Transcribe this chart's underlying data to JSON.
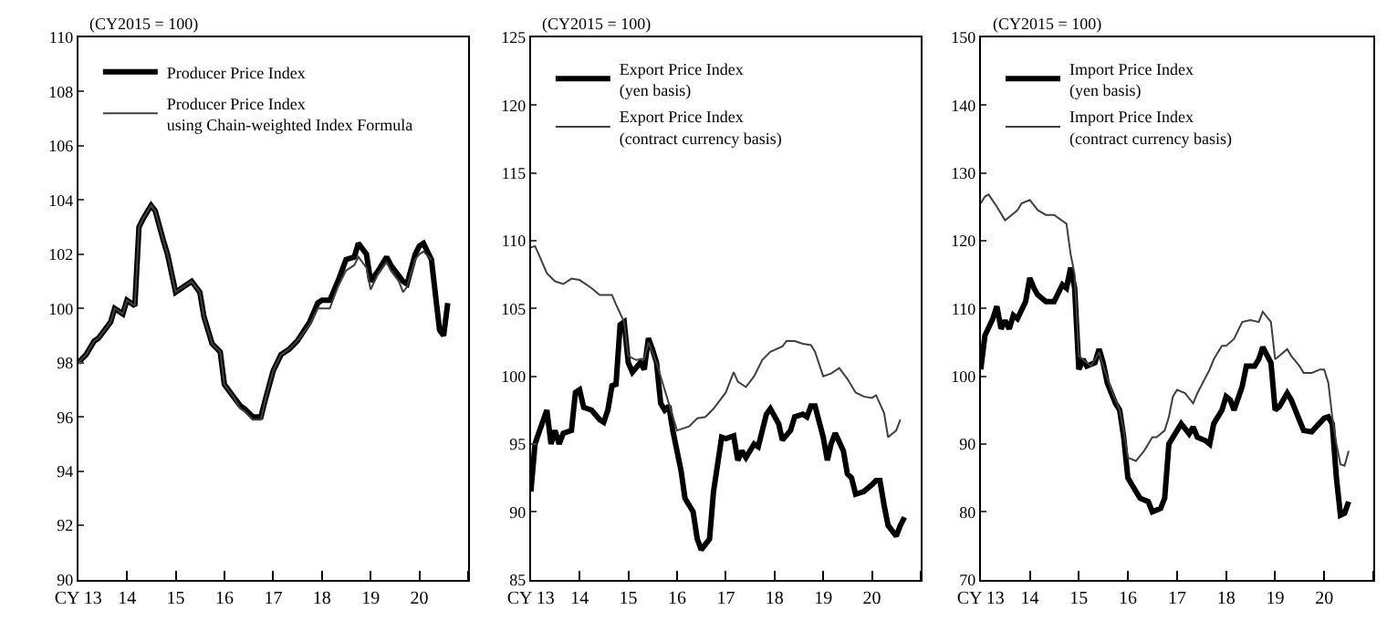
{
  "chart_data": [
    {
      "type": "line",
      "ylabel": "(CY2015 = 100)",
      "xlim": [
        "2013-01",
        "2021-01"
      ],
      "ylim": [
        90,
        110
      ],
      "yticks": [
        90,
        92,
        94,
        96,
        98,
        100,
        102,
        104,
        106,
        108,
        110
      ],
      "xticks": [
        {
          "value": "2013",
          "label": "CY 13"
        },
        {
          "value": "2014",
          "label": "14"
        },
        {
          "value": "2015",
          "label": "15"
        },
        {
          "value": "2016",
          "label": "16"
        },
        {
          "value": "2017",
          "label": "17"
        },
        {
          "value": "2018",
          "label": "18"
        },
        {
          "value": "2019",
          "label": "19"
        },
        {
          "value": "2020",
          "label": "20"
        },
        {
          "value": "2021",
          "label": null
        }
      ],
      "legend": "top left",
      "marker": "none",
      "line_style": "solid",
      "series": [
        {
          "name": "Producer Price Index",
          "color": "#000000",
          "x": [
            "2013-01",
            "2013-03",
            "2013-05",
            "2013-06",
            "2013-09",
            "2013-10",
            "2013-12",
            "2014-01",
            "2014-03",
            "2014-04",
            "2014-05",
            "2014-07",
            "2014-08",
            "2014-10",
            "2014-11",
            "2015-01",
            "2015-03",
            "2015-05",
            "2015-07",
            "2015-08",
            "2015-10",
            "2015-12",
            "2016-01",
            "2016-03",
            "2016-05",
            "2016-06",
            "2016-08",
            "2016-10",
            "2016-11",
            "2017-01",
            "2017-03",
            "2017-05",
            "2017-07",
            "2017-10",
            "2017-12",
            "2018-01",
            "2018-03",
            "2018-05",
            "2018-07",
            "2018-09",
            "2018-10",
            "2018-12",
            "2019-01",
            "2019-03",
            "2019-05",
            "2019-06",
            "2019-08",
            "2019-09",
            "2019-10",
            "2019-12",
            "2020-01",
            "2020-02",
            "2020-04",
            "2020-05",
            "2020-06",
            "2020-07",
            "2020-08"
          ],
          "values": [
            98.0,
            98.3,
            98.8,
            98.9,
            99.5,
            100.0,
            99.8,
            100.3,
            100.1,
            103.0,
            103.3,
            103.8,
            103.6,
            102.5,
            102.0,
            100.6,
            100.8,
            101.0,
            100.6,
            99.7,
            98.7,
            98.4,
            97.2,
            96.8,
            96.4,
            96.3,
            96.0,
            96.0,
            96.6,
            97.7,
            98.3,
            98.5,
            98.8,
            99.5,
            100.2,
            100.3,
            100.3,
            101.0,
            101.8,
            101.9,
            102.4,
            102.0,
            101.0,
            101.4,
            101.9,
            101.6,
            101.2,
            101.0,
            100.9,
            102.0,
            102.3,
            102.4,
            101.8,
            100.5,
            99.2,
            99.0,
            100.2
          ]
        },
        {
          "name": "Producer Price Index\nusing Chain-weighted Index Formula",
          "color": "#404040",
          "x": [
            "2013-01",
            "2013-03",
            "2013-05",
            "2013-06",
            "2013-09",
            "2013-10",
            "2013-12",
            "2014-01",
            "2014-03",
            "2014-04",
            "2014-05",
            "2014-07",
            "2014-08",
            "2014-10",
            "2014-11",
            "2015-01",
            "2015-03",
            "2015-05",
            "2015-07",
            "2015-08",
            "2015-10",
            "2015-12",
            "2016-01",
            "2016-03",
            "2016-05",
            "2016-06",
            "2016-08",
            "2016-10",
            "2016-11",
            "2017-01",
            "2017-03",
            "2017-05",
            "2017-07",
            "2017-10",
            "2017-12",
            "2018-01",
            "2018-03",
            "2018-05",
            "2018-07",
            "2018-09",
            "2018-10",
            "2018-12",
            "2019-01",
            "2019-03",
            "2019-05",
            "2019-06",
            "2019-08",
            "2019-09",
            "2019-10",
            "2019-12",
            "2020-01",
            "2020-02",
            "2020-04"
          ],
          "values": [
            98.0,
            98.3,
            98.8,
            98.9,
            99.5,
            100.0,
            99.8,
            100.3,
            100.1,
            103.0,
            103.3,
            103.8,
            103.6,
            102.5,
            102.0,
            100.6,
            100.8,
            101.0,
            100.6,
            99.7,
            98.7,
            98.4,
            97.2,
            96.8,
            96.3,
            96.2,
            95.9,
            95.9,
            96.6,
            97.7,
            98.3,
            98.5,
            98.8,
            99.4,
            100.0,
            100.0,
            100.0,
            100.8,
            101.4,
            101.6,
            101.9,
            101.5,
            100.7,
            101.3,
            101.7,
            101.4,
            101.0,
            100.6,
            100.8,
            101.8,
            102.0,
            102.1,
            101.8
          ]
        }
      ]
    },
    {
      "type": "line",
      "ylabel": "(CY2015 = 100)",
      "xlim": [
        "2013-01",
        "2021-01"
      ],
      "ylim": [
        85,
        125
      ],
      "yticks": [
        85,
        90,
        95,
        100,
        105,
        110,
        115,
        120,
        125
      ],
      "xticks": [
        {
          "value": "2013",
          "label": "CY 13"
        },
        {
          "value": "2014",
          "label": "14"
        },
        {
          "value": "2015",
          "label": "15"
        },
        {
          "value": "2016",
          "label": "16"
        },
        {
          "value": "2017",
          "label": "17"
        },
        {
          "value": "2018",
          "label": "18"
        },
        {
          "value": "2019",
          "label": "19"
        },
        {
          "value": "2020",
          "label": "20"
        },
        {
          "value": "2021",
          "label": null
        }
      ],
      "legend": "top left",
      "marker": "none",
      "line_style": "solid",
      "series": [
        {
          "name": "Export Price Index\n(yen basis)",
          "color": "#000000",
          "x": [
            "2013-01",
            "2013-02",
            "2013-03",
            "2013-05",
            "2013-06",
            "2013-07",
            "2013-08",
            "2013-09",
            "2013-11",
            "2013-12",
            "2014-01",
            "2014-02",
            "2014-04",
            "2014-06",
            "2014-07",
            "2014-08",
            "2014-09",
            "2014-10",
            "2014-11",
            "2014-12",
            "2015-01",
            "2015-02",
            "2015-04",
            "2015-05",
            "2015-06",
            "2015-07",
            "2015-08",
            "2015-09",
            "2015-10",
            "2015-11",
            "2015-12",
            "2016-02",
            "2016-03",
            "2016-05",
            "2016-06",
            "2016-07",
            "2016-09",
            "2016-10",
            "2016-12",
            "2017-01",
            "2017-03",
            "2017-04",
            "2017-05",
            "2017-06",
            "2017-08",
            "2017-09",
            "2017-11",
            "2017-12",
            "2018-02",
            "2018-03",
            "2018-05",
            "2018-06",
            "2018-08",
            "2018-09",
            "2018-10",
            "2018-11",
            "2019-01",
            "2019-02",
            "2019-03",
            "2019-04",
            "2019-06",
            "2019-07",
            "2019-08",
            "2019-09",
            "2019-11",
            "2020-01",
            "2020-02",
            "2020-03",
            "2020-04",
            "2020-05",
            "2020-07",
            "2020-08",
            "2020-09"
          ],
          "values": [
            91.5,
            95.0,
            95.8,
            97.5,
            95.0,
            96.0,
            95.0,
            95.8,
            96.0,
            98.8,
            99.0,
            97.7,
            97.5,
            96.8,
            96.6,
            97.5,
            99.3,
            99.4,
            103.8,
            104.0,
            101.0,
            100.3,
            101.0,
            100.5,
            102.8,
            102.0,
            101.0,
            98.0,
            97.5,
            97.8,
            96.0,
            93.0,
            91.0,
            90.0,
            88.0,
            87.2,
            88.0,
            91.5,
            95.5,
            95.4,
            95.6,
            93.8,
            94.5,
            94.0,
            95.0,
            94.8,
            97.2,
            97.6,
            96.5,
            95.3,
            96.0,
            97.0,
            97.2,
            97.0,
            97.8,
            97.8,
            95.5,
            93.8,
            95.0,
            95.8,
            94.5,
            92.8,
            92.5,
            91.3,
            91.5,
            92.0,
            92.3,
            92.3,
            90.5,
            89.0,
            88.2,
            89.0,
            89.6
          ]
        },
        {
          "name": "Export Price Index\n(contract currency basis)",
          "color": "#404040",
          "x": [
            "2013-01",
            "2013-02",
            "2013-03",
            "2013-05",
            "2013-07",
            "2013-09",
            "2013-11",
            "2014-01",
            "2014-04",
            "2014-06",
            "2014-09",
            "2014-10",
            "2014-12",
            "2015-01",
            "2015-03",
            "2015-05",
            "2015-06",
            "2015-08",
            "2015-10",
            "2015-11",
            "2016-01",
            "2016-04",
            "2016-06",
            "2016-08",
            "2016-10",
            "2017-01",
            "2017-03",
            "2017-04",
            "2017-06",
            "2017-08",
            "2017-10",
            "2017-12",
            "2018-03",
            "2018-04",
            "2018-06",
            "2018-08",
            "2018-10",
            "2018-11",
            "2019-01",
            "2019-03",
            "2019-05",
            "2019-07",
            "2019-09",
            "2019-11",
            "2020-01",
            "2020-02",
            "2020-04",
            "2020-05",
            "2020-07",
            "2020-08"
          ],
          "values": [
            109.5,
            109.6,
            109.0,
            107.6,
            107.0,
            106.8,
            107.2,
            107.1,
            106.5,
            106.0,
            106.0,
            105.3,
            104.0,
            101.5,
            101.2,
            101.3,
            102.5,
            101.0,
            99.0,
            98.0,
            96.0,
            96.3,
            96.9,
            97.0,
            97.6,
            98.8,
            100.3,
            99.6,
            99.2,
            100.0,
            101.2,
            101.8,
            102.2,
            102.6,
            102.6,
            102.4,
            102.3,
            101.8,
            100.0,
            100.2,
            100.6,
            99.8,
            98.8,
            98.5,
            98.4,
            98.6,
            97.3,
            95.5,
            96.0,
            96.8
          ]
        }
      ]
    },
    {
      "type": "line",
      "ylabel": "(CY2015 = 100)",
      "xlim": [
        "2013-01",
        "2021-01"
      ],
      "ylim": [
        70,
        150
      ],
      "yticks": [
        70,
        80,
        90,
        100,
        110,
        120,
        130,
        140,
        150
      ],
      "xticks": [
        {
          "value": "2013",
          "label": "CY 13"
        },
        {
          "value": "2014",
          "label": "14"
        },
        {
          "value": "2015",
          "label": "15"
        },
        {
          "value": "2016",
          "label": "16"
        },
        {
          "value": "2017",
          "label": "17"
        },
        {
          "value": "2018",
          "label": "18"
        },
        {
          "value": "2019",
          "label": "19"
        },
        {
          "value": "2020",
          "label": "20"
        },
        {
          "value": "2021",
          "label": null
        }
      ],
      "legend": "top left",
      "marker": "none",
      "line_style": "solid",
      "series": [
        {
          "name": "Import Price Index\n(yen basis)",
          "color": "#000000",
          "x": [
            "2013-01",
            "2013-02",
            "2013-04",
            "2013-05",
            "2013-06",
            "2013-07",
            "2013-08",
            "2013-09",
            "2013-10",
            "2013-12",
            "2014-01",
            "2014-02",
            "2014-03",
            "2014-05",
            "2014-07",
            "2014-09",
            "2014-10",
            "2014-11",
            "2014-12",
            "2015-01",
            "2015-02",
            "2015-03",
            "2015-05",
            "2015-06",
            "2015-07",
            "2015-08",
            "2015-10",
            "2015-11",
            "2015-12",
            "2016-01",
            "2016-03",
            "2016-04",
            "2016-06",
            "2016-07",
            "2016-09",
            "2016-10",
            "2016-11",
            "2017-01",
            "2017-02",
            "2017-04",
            "2017-05",
            "2017-06",
            "2017-08",
            "2017-09",
            "2017-10",
            "2017-12",
            "2018-01",
            "2018-02",
            "2018-03",
            "2018-05",
            "2018-06",
            "2018-08",
            "2018-09",
            "2018-10",
            "2018-12",
            "2019-01",
            "2019-02",
            "2019-04",
            "2019-05",
            "2019-07",
            "2019-08",
            "2019-10",
            "2019-11",
            "2020-01",
            "2020-02",
            "2020-03",
            "2020-04",
            "2020-05",
            "2020-06",
            "2020-07"
          ],
          "values": [
            101,
            106,
            108.5,
            110.3,
            107,
            108.2,
            107,
            109,
            108.5,
            111,
            114.5,
            113,
            112,
            111,
            111,
            113.5,
            113,
            116,
            113,
            101,
            102.5,
            101.5,
            102,
            104,
            102,
            99,
            96,
            95,
            91,
            85,
            83,
            82,
            81.5,
            80,
            80.5,
            82,
            90,
            92,
            93,
            91.5,
            92.5,
            91,
            90.5,
            90,
            93,
            95,
            97,
            96.5,
            95,
            98.5,
            101.5,
            101.5,
            102.5,
            104.3,
            102,
            95,
            95.5,
            97.5,
            96.5,
            93.5,
            92,
            91.8,
            92.5,
            93.8,
            94,
            93,
            85,
            79.5,
            79.8,
            81.5
          ]
        },
        {
          "name": "Import Price Index\n(contract currency basis)",
          "color": "#404040",
          "x": [
            "2013-01",
            "2013-02",
            "2013-03",
            "2013-05",
            "2013-07",
            "2013-08",
            "2013-10",
            "2013-11",
            "2014-01",
            "2014-03",
            "2014-05",
            "2014-07",
            "2014-10",
            "2014-11",
            "2014-12",
            "2015-01",
            "2015-03",
            "2015-04",
            "2015-06",
            "2015-07",
            "2015-09",
            "2015-11",
            "2015-12",
            "2016-01",
            "2016-03",
            "2016-05",
            "2016-07",
            "2016-08",
            "2016-10",
            "2016-11",
            "2016-12",
            "2017-01",
            "2017-03",
            "2017-05",
            "2017-06",
            "2017-09",
            "2017-10",
            "2017-12",
            "2018-01",
            "2018-03",
            "2018-05",
            "2018-07",
            "2018-09",
            "2018-10",
            "2018-12",
            "2019-01",
            "2019-02",
            "2019-04",
            "2019-05",
            "2019-07",
            "2019-08",
            "2019-10",
            "2019-12",
            "2020-01",
            "2020-02",
            "2020-03",
            "2020-04",
            "2020-05",
            "2020-06",
            "2020-07"
          ],
          "values": [
            125.5,
            126.5,
            126.8,
            125,
            123,
            123.5,
            124.5,
            125.5,
            126,
            124.5,
            123.8,
            123.8,
            122.5,
            118,
            115,
            103,
            102,
            101.5,
            103.5,
            101.5,
            98,
            95,
            92,
            88,
            87.5,
            89,
            91,
            91,
            92,
            94,
            97,
            98,
            97.5,
            96,
            97.5,
            101,
            102.5,
            104.5,
            104.5,
            105.5,
            108,
            108.3,
            108,
            109.5,
            108,
            102.5,
            103,
            104,
            103,
            101.5,
            100.5,
            100.5,
            101,
            101,
            99,
            94,
            90,
            87,
            86.8,
            89
          ]
        }
      ]
    }
  ]
}
